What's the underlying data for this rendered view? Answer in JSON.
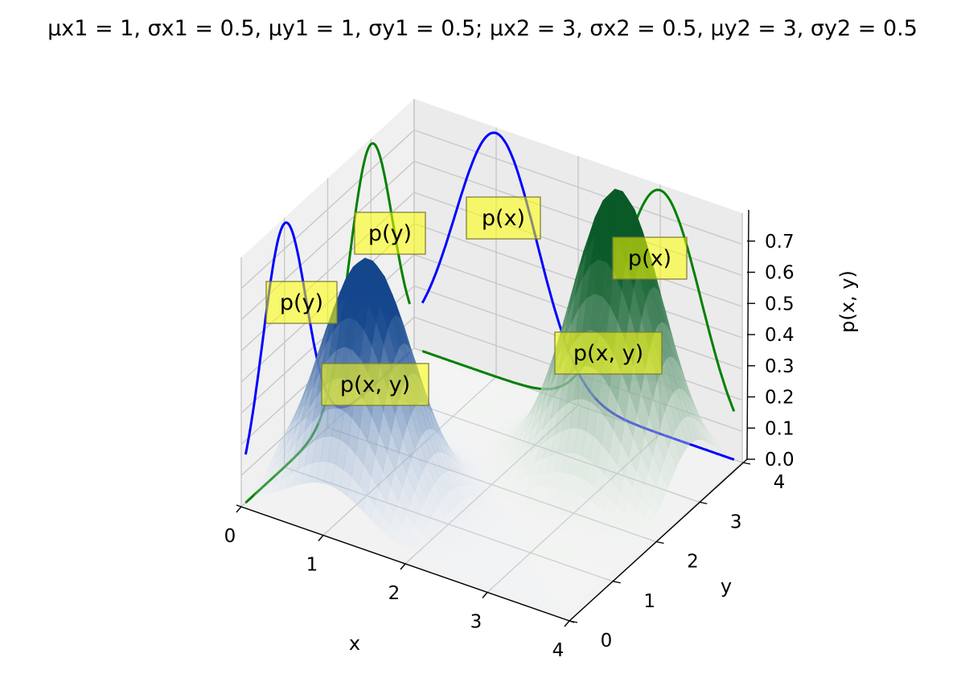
{
  "title": "μx1 = 1, σx1 = 0.5, μy1 = 1, σy1 = 0.5; μx2 = 3, σx2 = 0.5, μy2 = 3, σy2 = 0.5",
  "chart_data": {
    "type": "surface3d",
    "title": "μx1 = 1, σx1 = 0.5, μy1 = 1, σy1 = 0.5; μx2 = 3, σx2 = 0.5, μy2 = 3, σy2 = 0.5",
    "xlabel": "x",
    "ylabel": "y",
    "zlabel": "p(x, y)",
    "xlim": [
      0,
      4
    ],
    "ylim": [
      0,
      4
    ],
    "zlim": [
      0,
      0.8
    ],
    "x_ticks": [
      "0",
      "1",
      "2",
      "3",
      "4"
    ],
    "y_ticks": [
      "0",
      "1",
      "2",
      "3",
      "4"
    ],
    "z_ticks": [
      "0.0",
      "0.1",
      "0.2",
      "0.3",
      "0.4",
      "0.5",
      "0.6",
      "0.7"
    ],
    "grid": true,
    "gaussians": [
      {
        "mu_x": 1,
        "sigma_x": 0.5,
        "mu_y": 1,
        "sigma_y": 0.5,
        "colormap": "Blues"
      },
      {
        "mu_x": 3,
        "sigma_x": 0.5,
        "mu_y": 3,
        "sigma_y": 0.5,
        "colormap": "Greens"
      }
    ],
    "marginals": [
      {
        "label": "p(y)",
        "color": "#0000ff",
        "plane": "x=0",
        "of": "y",
        "mu": 1,
        "sigma": 0.5
      },
      {
        "label": "p(y)",
        "color": "#008000",
        "plane": "x=0",
        "of": "y",
        "mu": 3,
        "sigma": 0.5
      },
      {
        "label": "p(x)",
        "color": "#0000ff",
        "plane": "y=4",
        "of": "x",
        "mu": 1,
        "sigma": 0.5
      },
      {
        "label": "p(x)",
        "color": "#008000",
        "plane": "y=4",
        "of": "x",
        "mu": 3,
        "sigma": 0.5
      }
    ],
    "annotations": [
      {
        "text": "p(y)",
        "color": "#ffff00"
      },
      {
        "text": "p(y)",
        "color": "#ffff00"
      },
      {
        "text": "p(x)",
        "color": "#ffff00"
      },
      {
        "text": "p(x)",
        "color": "#ffff00"
      },
      {
        "text": "p(x, y)",
        "color": "#ffff00"
      },
      {
        "text": "p(x, y)",
        "color": "#ffff00"
      }
    ]
  }
}
